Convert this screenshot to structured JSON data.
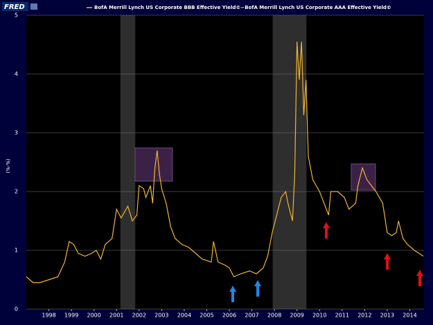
{
  "logo": "FRED",
  "chart_data": {
    "type": "line",
    "ylabel": "(%-%)",
    "x": [
      1997.0,
      1997.3,
      1997.6,
      1998.0,
      1998.4,
      1998.7,
      1998.9,
      1999.1,
      1999.3,
      1999.6,
      1999.9,
      2000.1,
      2000.3,
      2000.5,
      2000.8,
      2000.9,
      2001.0,
      2001.2,
      2001.5,
      2001.7,
      2001.9,
      2002.0,
      2002.2,
      2002.3,
      2002.5,
      2002.6,
      2002.7,
      2002.8,
      2002.9,
      2003.0,
      2003.2,
      2003.4,
      2003.6,
      2003.9,
      2004.2,
      2004.5,
      2004.8,
      2005.2,
      2005.3,
      2005.5,
      2005.8,
      2006.0,
      2006.2,
      2006.5,
      2006.9,
      2007.2,
      2007.5,
      2007.7,
      2007.9,
      2008.1,
      2008.3,
      2008.5,
      2008.6,
      2008.8,
      2008.9,
      2009.0,
      2009.1,
      2009.2,
      2009.3,
      2009.4,
      2009.5,
      2009.7,
      2010.0,
      2010.2,
      2010.4,
      2010.5,
      2010.8,
      2011.1,
      2011.3,
      2011.6,
      2011.7,
      2011.9,
      2012.1,
      2012.3,
      2012.5,
      2012.8,
      2013.0,
      2013.2,
      2013.4,
      2013.5,
      2013.7,
      2013.9,
      2014.2,
      2014.4,
      2014.6
    ],
    "series": [
      {
        "name": "BofA Merrill Lynch US Corporate BBB Effective Yield©−BofA Merrill Lynch US Corporate AAA Effective Yield©",
        "color": "#f2b630",
        "values": [
          0.55,
          0.45,
          0.45,
          0.5,
          0.55,
          0.8,
          1.15,
          1.1,
          0.95,
          0.9,
          0.95,
          1.0,
          0.85,
          1.1,
          1.2,
          1.45,
          1.7,
          1.55,
          1.75,
          1.5,
          1.6,
          2.1,
          2.05,
          1.9,
          2.1,
          1.8,
          2.4,
          2.7,
          2.3,
          2.05,
          1.8,
          1.4,
          1.2,
          1.1,
          1.05,
          0.95,
          0.85,
          0.8,
          1.15,
          0.8,
          0.75,
          0.7,
          0.55,
          0.6,
          0.65,
          0.6,
          0.7,
          0.9,
          1.3,
          1.6,
          1.9,
          2.0,
          1.8,
          1.5,
          2.3,
          4.55,
          3.9,
          4.55,
          3.3,
          3.9,
          2.6,
          2.2,
          2.0,
          1.8,
          1.6,
          2.0,
          2.0,
          1.9,
          1.7,
          1.8,
          2.1,
          2.4,
          2.2,
          2.1,
          2.0,
          1.8,
          1.3,
          1.25,
          1.3,
          1.5,
          1.2,
          1.1,
          1.0,
          0.95,
          0.9
        ]
      }
    ],
    "recessions": [
      [
        2001.17,
        2001.83
      ],
      [
        2007.92,
        2009.42
      ]
    ],
    "xlim": [
      1997.0,
      2014.63
    ],
    "xticks": [
      1998,
      1999,
      2000,
      2001,
      2002,
      2003,
      2004,
      2005,
      2006,
      2007,
      2008,
      2009,
      2010,
      2011,
      2012,
      2013,
      2014
    ],
    "ylim": [
      0,
      5
    ],
    "yticks": [
      0,
      1,
      2,
      3,
      4,
      5
    ],
    "grid": true
  }
}
